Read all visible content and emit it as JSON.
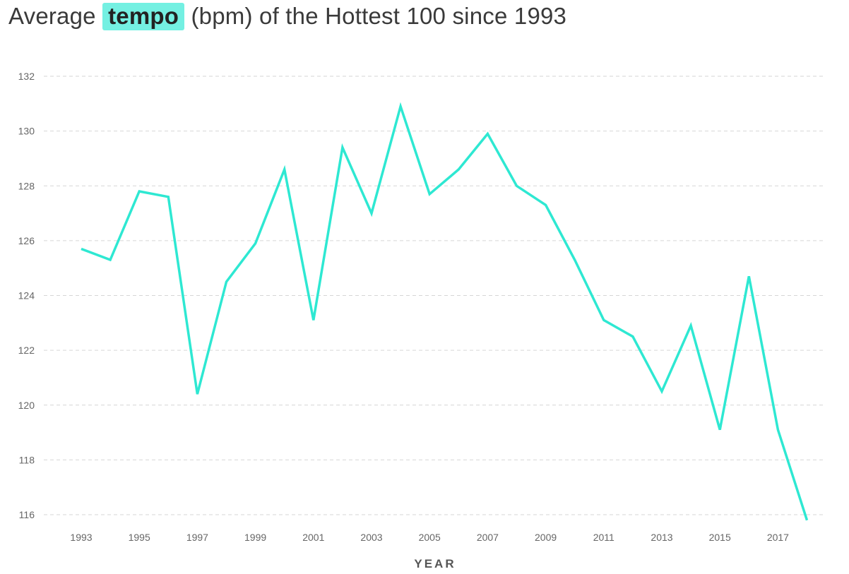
{
  "title": {
    "prefix": "Average",
    "highlight": "tempo",
    "suffix": "(bpm) of the Hottest 100 since 1993"
  },
  "colors": {
    "line": "#2ee8d2",
    "highlight_bg": "#74f0e2",
    "grid": "#d6d6d6",
    "tick_text": "#666666"
  },
  "chart_data": {
    "type": "line",
    "title": "Average tempo (bpm) of the Hottest 100 since 1993",
    "xlabel": "YEAR",
    "ylabel": "",
    "ylim": [
      116,
      132
    ],
    "yticks": [
      116,
      118,
      120,
      122,
      124,
      126,
      128,
      130,
      132
    ],
    "xticks": [
      1993,
      1995,
      1997,
      1999,
      2001,
      2003,
      2005,
      2007,
      2009,
      2011,
      2013,
      2015,
      2017
    ],
    "grid": "horizontal dashed",
    "legend": null,
    "x": [
      1993,
      1994,
      1995,
      1996,
      1997,
      1998,
      1999,
      2000,
      2001,
      2002,
      2003,
      2004,
      2005,
      2006,
      2007,
      2008,
      2009,
      2010,
      2011,
      2012,
      2013,
      2014,
      2015,
      2016,
      2017,
      2018
    ],
    "series": [
      {
        "name": "Average tempo (bpm)",
        "values": [
          125.7,
          125.3,
          127.8,
          127.6,
          120.4,
          124.5,
          125.9,
          128.6,
          123.1,
          129.4,
          127.0,
          130.9,
          127.7,
          128.6,
          129.9,
          128.0,
          127.3,
          125.3,
          123.1,
          122.5,
          120.5,
          122.9,
          119.1,
          124.7,
          119.1,
          115.8
        ]
      }
    ]
  }
}
